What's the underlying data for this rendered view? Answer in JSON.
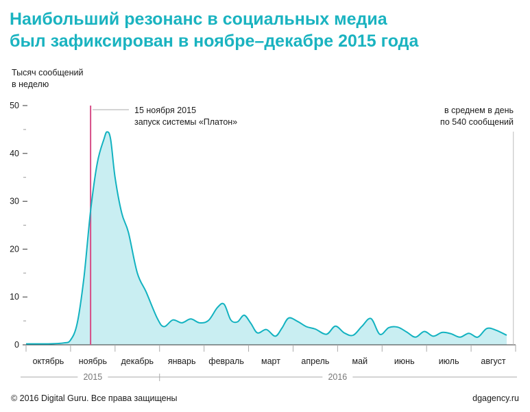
{
  "title_lines": [
    "Наибольший резонанс в социальных медиа",
    "был зафиксирован в ноябре–декабре 2015 года"
  ],
  "footer": {
    "copyright": "© 2016 Digital Guru. Все права защищены",
    "site": "dgagency.ru"
  },
  "colors": {
    "title": "#1ab3c0",
    "line": "#12b2c0",
    "fill": "#c9eef2",
    "marker": "#d64b86",
    "axis": "#333333",
    "guide": "#bbbbbb"
  },
  "chart_data": {
    "type": "area",
    "title": "Наибольший резонанс в социальных медиа был зафиксирован в ноябре–декабре 2015 года",
    "ylabel_lines": [
      "Тысяч сообщений",
      "в неделю"
    ],
    "xlabel": "",
    "ylim": [
      0,
      50
    ],
    "yticks": [
      0,
      10,
      20,
      30,
      40,
      50
    ],
    "grid": false,
    "x_unit": "months since 1 Oct 2015",
    "xlim": [
      0,
      11
    ],
    "month_labels": [
      "октябрь",
      "ноябрь",
      "декабрь",
      "январь",
      "февраль",
      "март",
      "апрель",
      "май",
      "июнь",
      "июль",
      "август"
    ],
    "years": [
      {
        "label": "2015",
        "from": 0,
        "to": 3
      },
      {
        "label": "2016",
        "from": 3,
        "to": 11
      }
    ],
    "series": [
      {
        "name": "Тысяч сообщений в неделю",
        "x": [
          0,
          0.5,
          0.85,
          1.0,
          1.15,
          1.3,
          1.45,
          1.6,
          1.75,
          1.82,
          1.9,
          2.0,
          2.15,
          2.3,
          2.5,
          2.7,
          2.95,
          3.1,
          3.3,
          3.5,
          3.7,
          3.9,
          4.1,
          4.3,
          4.45,
          4.6,
          4.75,
          4.9,
          5.05,
          5.2,
          5.4,
          5.6,
          5.75,
          5.9,
          6.1,
          6.3,
          6.5,
          6.75,
          6.95,
          7.15,
          7.35,
          7.55,
          7.75,
          7.95,
          8.15,
          8.35,
          8.55,
          8.75,
          8.95,
          9.15,
          9.35,
          9.55,
          9.75,
          9.95,
          10.15,
          10.35,
          10.55,
          10.8
        ],
        "values": [
          0.2,
          0.2,
          0.4,
          1.0,
          4.5,
          14,
          28,
          38,
          43,
          44.5,
          43,
          35,
          27.5,
          23.5,
          15,
          11,
          5.5,
          3.8,
          5.2,
          4.6,
          5.4,
          4.6,
          5.1,
          7.8,
          8.5,
          5.2,
          4.8,
          6.2,
          4.5,
          2.5,
          3.2,
          1.8,
          3.5,
          5.6,
          4.9,
          3.8,
          3.3,
          2.2,
          3.9,
          2.5,
          2.0,
          3.9,
          5.5,
          2.2,
          3.6,
          3.7,
          2.7,
          1.6,
          2.8,
          1.8,
          2.6,
          2.3,
          1.6,
          2.4,
          1.6,
          3.4,
          3.1,
          2.0
        ]
      }
    ],
    "annotations": [
      {
        "x": 1.45,
        "lines": [
          "15 ноября 2015",
          "запуск системы «Платон»"
        ]
      },
      {
        "x": 10.95,
        "lines": [
          "в среднем в день",
          "по 540 сообщений"
        ]
      }
    ]
  }
}
